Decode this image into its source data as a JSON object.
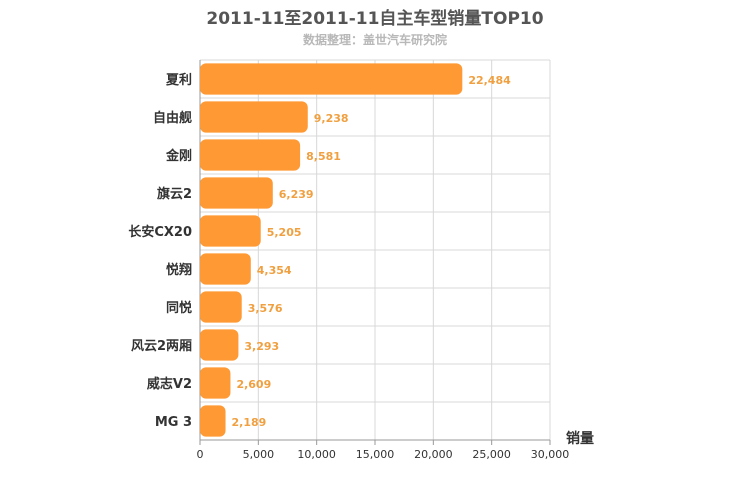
{
  "chart_data": {
    "type": "bar",
    "orientation": "horizontal",
    "title": "2011-11至2011-11自主车型销量TOP10",
    "subtitle": "数据整理：盖世汽车研究院",
    "xlabel": "销量",
    "ylabel": "",
    "xlim": [
      0,
      30000
    ],
    "x_ticks": [
      "0",
      "5,000",
      "10,000",
      "15,000",
      "20,000",
      "25,000",
      "30,000"
    ],
    "categories": [
      "夏利",
      "自由舰",
      "金刚",
      "旗云2",
      "长安CX20",
      "悦翔",
      "同悦",
      "风云2两厢",
      "威志V2",
      "MG 3"
    ],
    "values": [
      22484,
      9238,
      8581,
      6239,
      5205,
      4354,
      3576,
      3293,
      2609,
      2189
    ],
    "value_labels": [
      "22,484",
      "9,238",
      "8,581",
      "6,239",
      "5,205",
      "4,354",
      "3,576",
      "3,293",
      "2,609",
      "2,189"
    ],
    "grid": true,
    "legend": "none",
    "colors": {
      "bar": "#ff9933",
      "value_label": "#f0a040",
      "grid": "#d8d8d8",
      "axis": "#999999"
    }
  }
}
